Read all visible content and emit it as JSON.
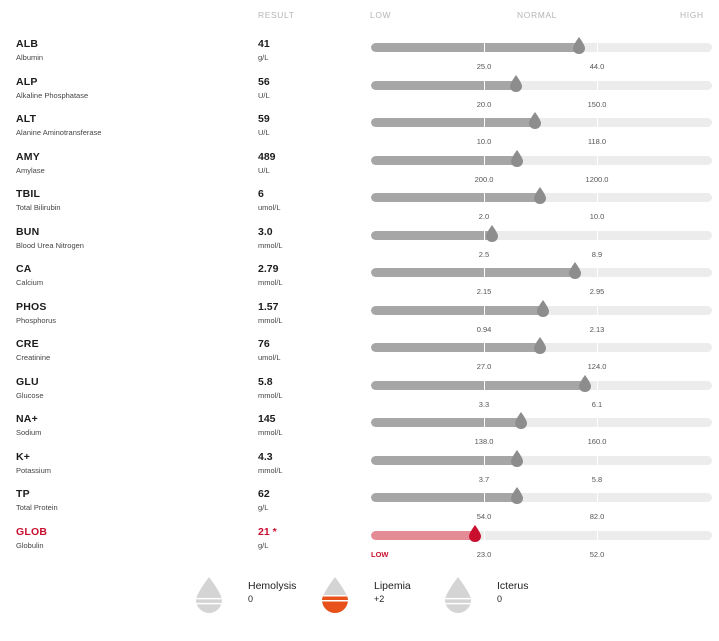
{
  "headers": {
    "result": "RESULT",
    "low": "LOW",
    "normal": "NORMAL",
    "high": "HIGH"
  },
  "colors": {
    "pin": "#8d8d8d",
    "flag": "#c8102e",
    "lipemia": "#e8511a",
    "index_drop": "#d4d4d4"
  },
  "rows": [
    {
      "abbr": "ALB",
      "name": "Albumin",
      "value": "41",
      "unit": "g/L",
      "low": "25.0",
      "high": "44.0",
      "level": 0.61,
      "flag": false
    },
    {
      "abbr": "ALP",
      "name": "Alkaline Phosphatase",
      "value": "56",
      "unit": "U/L",
      "low": "20.0",
      "high": "150.0",
      "level": 0.425,
      "flag": false
    },
    {
      "abbr": "ALT",
      "name": "Alanine Aminotransferase",
      "value": "59",
      "unit": "U/L",
      "low": "10.0",
      "high": "118.0",
      "level": 0.48,
      "flag": false
    },
    {
      "abbr": "AMY",
      "name": "Amylase",
      "value": "489",
      "unit": "U/L",
      "low": "200.0",
      "high": "1200.0",
      "level": 0.427,
      "flag": false
    },
    {
      "abbr": "TBIL",
      "name": "Total Bilirubin",
      "value": "6",
      "unit": "umol/L",
      "low": "2.0",
      "high": "10.0",
      "level": 0.495,
      "flag": false
    },
    {
      "abbr": "BUN",
      "name": "Blood Urea Nitrogen",
      "value": "3.0",
      "unit": "mmol/L",
      "low": "2.5",
      "high": "8.9",
      "level": 0.355,
      "flag": false
    },
    {
      "abbr": "CA",
      "name": "Calcium",
      "value": "2.79",
      "unit": "mmol/L",
      "low": "2.15",
      "high": "2.95",
      "level": 0.598,
      "flag": false
    },
    {
      "abbr": "PHOS",
      "name": "Phosphorus",
      "value": "1.57",
      "unit": "mmol/L",
      "low": "0.94",
      "high": "2.13",
      "level": 0.505,
      "flag": false
    },
    {
      "abbr": "CRE",
      "name": "Creatinine",
      "value": "76",
      "unit": "umol/L",
      "low": "27.0",
      "high": "124.0",
      "level": 0.497,
      "flag": false
    },
    {
      "abbr": "GLU",
      "name": "Glucose",
      "value": "5.8",
      "unit": "mmol/L",
      "low": "3.3",
      "high": "6.1",
      "level": 0.628,
      "flag": false
    },
    {
      "abbr": "NA+",
      "name": "Sodium",
      "value": "145",
      "unit": "mmol/L",
      "low": "138.0",
      "high": "160.0",
      "level": 0.44,
      "flag": false
    },
    {
      "abbr": "K+",
      "name": "Potassium",
      "value": "4.3",
      "unit": "mmol/L",
      "low": "3.7",
      "high": "5.8",
      "level": 0.427,
      "flag": false
    },
    {
      "abbr": "TP",
      "name": "Total Protein",
      "value": "62",
      "unit": "g/L",
      "low": "54.0",
      "high": "82.0",
      "level": 0.427,
      "flag": false
    },
    {
      "abbr": "GLOB",
      "name": "Globulin",
      "value": "21 *",
      "unit": "g/L",
      "low": "23.0",
      "high": "52.0",
      "level": 0.305,
      "flag": true,
      "flag_text": "LOW"
    }
  ],
  "indices": [
    {
      "label": "Hemolysis",
      "value": "0",
      "fill_fraction": 0
    },
    {
      "label": "Lipemia",
      "value": "+2",
      "fill_fraction": 0.5
    },
    {
      "label": "Icterus",
      "value": "0",
      "fill_fraction": 0
    }
  ]
}
